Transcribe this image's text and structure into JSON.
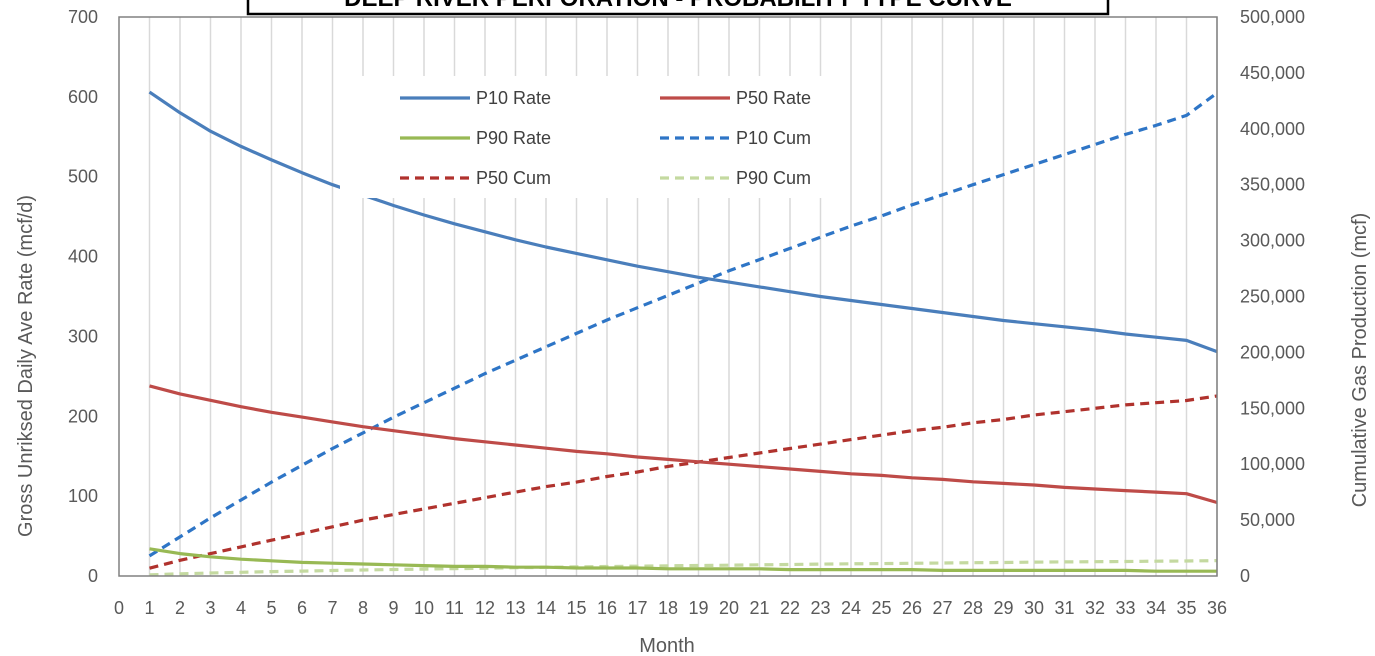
{
  "chart_data": {
    "type": "line",
    "title": "DEEP RIVER PERFORATION - PROBABILITY TYPE CURVE",
    "xlabel": "Month",
    "ylabel": "Gross Unriksed Daily Ave Rate (mcf/d)",
    "y2label": "Cumulative Gas Production (mcf)",
    "xlim": [
      0,
      36
    ],
    "ylim": [
      0,
      700
    ],
    "y2lim": [
      0,
      500000
    ],
    "x_ticks": [
      0,
      1,
      2,
      3,
      4,
      5,
      6,
      7,
      8,
      9,
      10,
      11,
      12,
      13,
      14,
      15,
      16,
      17,
      18,
      19,
      20,
      21,
      22,
      23,
      24,
      25,
      26,
      27,
      28,
      29,
      30,
      31,
      32,
      33,
      34,
      35,
      36
    ],
    "y_ticks": [
      0,
      100,
      200,
      300,
      400,
      500,
      600,
      700
    ],
    "y2_ticks": [
      "0",
      "50,000",
      "100,000",
      "150,000",
      "200,000",
      "250,000",
      "300,000",
      "350,000",
      "400,000",
      "450,000",
      "500,000"
    ],
    "grid": "vertical",
    "legend_position": "top-center",
    "x": [
      1,
      2,
      3,
      4,
      5,
      6,
      7,
      8,
      9,
      10,
      11,
      12,
      13,
      14,
      15,
      16,
      17,
      18,
      19,
      20,
      21,
      22,
      23,
      24,
      25,
      26,
      27,
      28,
      29,
      30,
      31,
      32,
      33,
      34,
      35,
      36
    ],
    "series": [
      {
        "name": "P10 Rate",
        "axis": "left",
        "color": "#4a7ebb",
        "dash": "solid",
        "values": [
          606,
          580,
          557,
          538,
          521,
          505,
          490,
          477,
          464,
          452,
          441,
          431,
          421,
          412,
          404,
          396,
          388,
          381,
          374,
          368,
          362,
          356,
          350,
          345,
          340,
          335,
          330,
          325,
          320,
          316,
          312,
          308,
          303,
          299,
          295,
          281
        ]
      },
      {
        "name": "P50 Rate",
        "axis": "left",
        "color": "#be4b48",
        "dash": "solid",
        "values": [
          238,
          228,
          220,
          212,
          205,
          199,
          193,
          187,
          182,
          177,
          172,
          168,
          164,
          160,
          156,
          153,
          149,
          146,
          143,
          140,
          137,
          134,
          131,
          128,
          126,
          123,
          121,
          118,
          116,
          114,
          111,
          109,
          107,
          105,
          103,
          92
        ]
      },
      {
        "name": "P90 Rate",
        "axis": "left",
        "color": "#98b954",
        "dash": "solid",
        "values": [
          34,
          28,
          24,
          21,
          19,
          17,
          16,
          15,
          14,
          13,
          12,
          12,
          11,
          11,
          10,
          10,
          10,
          9,
          9,
          9,
          9,
          8,
          8,
          8,
          8,
          8,
          7,
          7,
          7,
          7,
          7,
          7,
          7,
          6,
          6,
          6
        ]
      },
      {
        "name": "P10 Cum",
        "axis": "right",
        "color": "#2e75c6",
        "dash": "dashed",
        "values": [
          18000,
          35000,
          52000,
          68000,
          84000,
          99000,
          114000,
          128000,
          142000,
          155000,
          168000,
          181000,
          193000,
          205000,
          217000,
          229000,
          240000,
          251000,
          262000,
          273000,
          283000,
          293000,
          303000,
          313000,
          322000,
          332000,
          341000,
          350000,
          359000,
          368000,
          377000,
          386000,
          395000,
          403000,
          412000,
          432000
        ]
      },
      {
        "name": "P50 Cum",
        "axis": "right",
        "color": "#b0322d",
        "dash": "dashed",
        "values": [
          7000,
          14000,
          20000,
          26000,
          32000,
          38000,
          44000,
          50000,
          55000,
          60000,
          65000,
          70000,
          75000,
          80000,
          84000,
          89000,
          93000,
          98000,
          102000,
          106000,
          110000,
          114000,
          118000,
          122000,
          126000,
          130000,
          133000,
          137000,
          140000,
          144000,
          147000,
          150000,
          153000,
          155000,
          157000,
          161000
        ]
      },
      {
        "name": "P90 Cum",
        "axis": "right",
        "color": "#c4d9a0",
        "dash": "dashed",
        "values": [
          1000,
          2000,
          2700,
          3300,
          3900,
          4400,
          4900,
          5400,
          5800,
          6200,
          6600,
          7000,
          7400,
          7800,
          8100,
          8500,
          8800,
          9100,
          9400,
          9700,
          10000,
          10300,
          10600,
          10900,
          11100,
          11400,
          11600,
          11900,
          12100,
          12400,
          12600,
          12800,
          13000,
          13200,
          13400,
          13800
        ]
      }
    ]
  }
}
